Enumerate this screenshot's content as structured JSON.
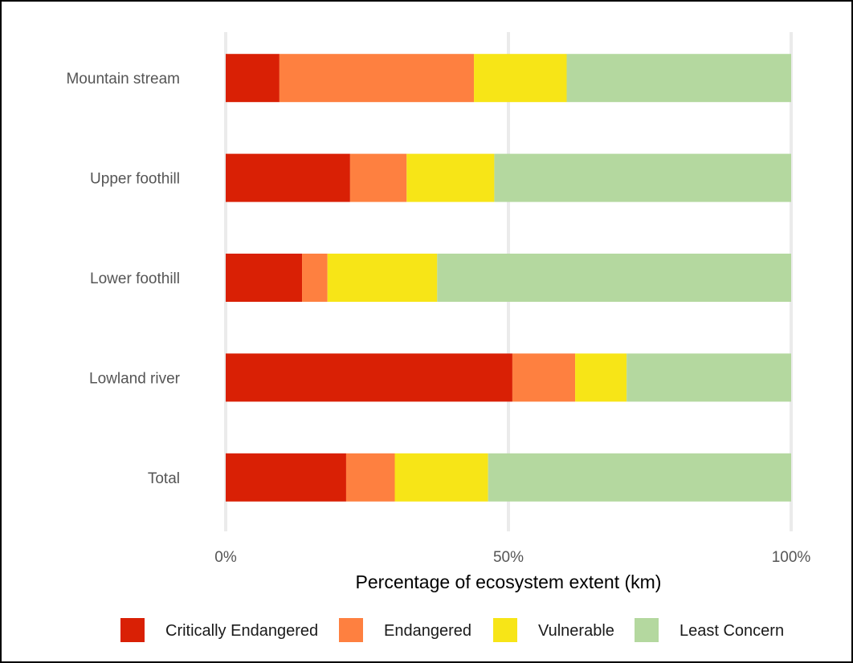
{
  "chart_data": {
    "type": "bar",
    "orientation": "horizontal",
    "stacked": true,
    "title": "",
    "xlabel": "Percentage of ecosystem extent (km)",
    "ylabel": "",
    "xlim": [
      0,
      100
    ],
    "x_ticks": [
      {
        "value": 0,
        "label": "0%"
      },
      {
        "value": 50,
        "label": "50%"
      },
      {
        "value": 100,
        "label": "100%"
      }
    ],
    "grid": "vertical major lines",
    "legend_position": "bottom",
    "categories": [
      "Mountain stream",
      "Upper foothill",
      "Lower foothill",
      "Lowland river",
      "Total"
    ],
    "series": [
      {
        "name": "Critically Endangered",
        "color": "#d92005",
        "values": [
          9.5,
          22,
          13.5,
          50.7,
          21.3
        ]
      },
      {
        "name": "Endangered",
        "color": "#fe8040",
        "values": [
          34.4,
          10,
          4.5,
          11.1,
          8.6
        ]
      },
      {
        "name": "Vulnerable",
        "color": "#f7e517",
        "values": [
          16.4,
          15.5,
          19.4,
          9.1,
          16.5
        ]
      },
      {
        "name": "Least Concern",
        "color": "#b4d89f",
        "values": [
          39.7,
          52.5,
          62.6,
          29.1,
          53.6
        ]
      }
    ]
  }
}
